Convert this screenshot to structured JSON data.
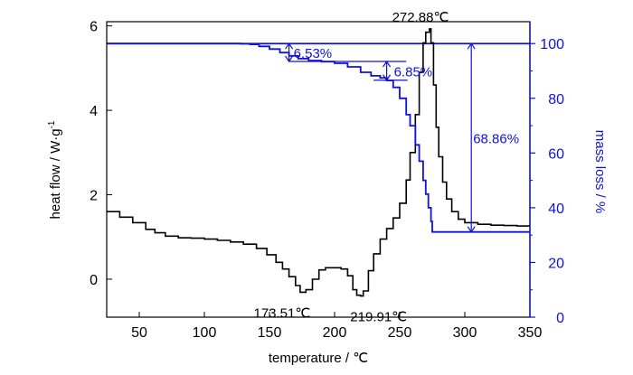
{
  "chart_data": {
    "type": "line",
    "xlabel": "temperature / ℃",
    "ylabel_left": "heat flow / W·g",
    "ylabel_left_sup": "-1",
    "ylabel_right": "mass loss / %",
    "xlim": [
      25,
      350
    ],
    "ylim_left": [
      -0.9,
      6.1
    ],
    "ylim_right": [
      0,
      108
    ],
    "x_ticks": [
      50,
      100,
      150,
      200,
      250,
      300,
      350
    ],
    "y_left_ticks": [
      0,
      2,
      4,
      6
    ],
    "y_right_ticks": [
      0,
      20,
      40,
      60,
      80,
      100
    ],
    "grid": false,
    "legend": "none",
    "colors": {
      "heat_flow": "#000000",
      "mass_loss": "#1010e0"
    },
    "series": [
      {
        "axis": "left",
        "x": [
          25,
          35,
          45,
          55,
          62,
          70,
          80,
          90,
          100,
          110,
          120,
          130,
          140,
          148,
          155,
          160,
          165,
          170,
          173.51,
          178,
          183,
          188,
          193,
          200,
          205,
          210,
          214,
          217,
          219.91,
          222,
          226,
          230,
          235,
          240,
          245,
          250,
          255,
          258,
          262,
          265,
          268,
          270,
          272.88,
          274,
          276,
          278,
          280,
          283,
          286,
          290,
          295,
          300,
          310,
          320,
          330,
          340,
          350
        ],
        "values": [
          1.6,
          1.47,
          1.34,
          1.18,
          1.1,
          1.02,
          0.98,
          0.97,
          0.95,
          0.92,
          0.88,
          0.83,
          0.73,
          0.58,
          0.4,
          0.24,
          0.06,
          -0.15,
          -0.31,
          -0.25,
          0.0,
          0.22,
          0.27,
          0.27,
          0.24,
          0.08,
          -0.25,
          -0.38,
          -0.4,
          -0.28,
          0.2,
          0.6,
          0.95,
          1.2,
          1.45,
          1.8,
          2.35,
          3.0,
          3.9,
          4.9,
          5.6,
          5.85,
          5.93,
          5.6,
          4.6,
          3.6,
          2.9,
          2.3,
          1.9,
          1.6,
          1.42,
          1.34,
          1.3,
          1.28,
          1.27,
          1.26,
          1.26
        ]
      },
      {
        "axis": "right",
        "x": [
          25,
          120,
          128,
          135,
          142,
          150,
          158,
          165,
          172,
          180,
          190,
          200,
          210,
          220,
          228,
          235,
          240,
          245,
          250,
          255,
          258,
          262,
          265,
          268,
          270,
          272,
          274,
          275,
          280,
          300,
          320,
          350
        ],
        "values": [
          100,
          100,
          99.9,
          99.7,
          99.0,
          98.0,
          96.7,
          95.5,
          94.5,
          93.8,
          93.4,
          92.8,
          91.5,
          89.5,
          88.2,
          87.5,
          86.5,
          84.0,
          80.0,
          74.0,
          70.0,
          63.0,
          57.0,
          50.0,
          45.0,
          40.0,
          35.0,
          31.14,
          31.14,
          31.14,
          31.14,
          31.14
        ]
      }
    ],
    "reference_line_right": 100,
    "annotations": {
      "peak_max": {
        "text": "272.88℃",
        "x": 272.88,
        "y": 5.93
      },
      "peak_min1": {
        "text": "173.51℃",
        "x": 173.51,
        "y": -0.31
      },
      "peak_min2": {
        "text": "219.91℃",
        "x": 219.91,
        "y": -0.4
      },
      "step1": {
        "text": "6.53%",
        "x": 165,
        "from": 100,
        "to": 93.47
      },
      "step2": {
        "text": "6.85%",
        "x": 240,
        "from": 93.47,
        "to": 86.62
      },
      "total": {
        "text": "68.86%",
        "x": 305,
        "from": 100,
        "to": 31.14
      },
      "bracket_lines": [
        {
          "value": 93.47,
          "x": [
            165,
            255
          ]
        },
        {
          "value": 86.62,
          "x": [
            230,
            256
          ]
        }
      ]
    }
  }
}
